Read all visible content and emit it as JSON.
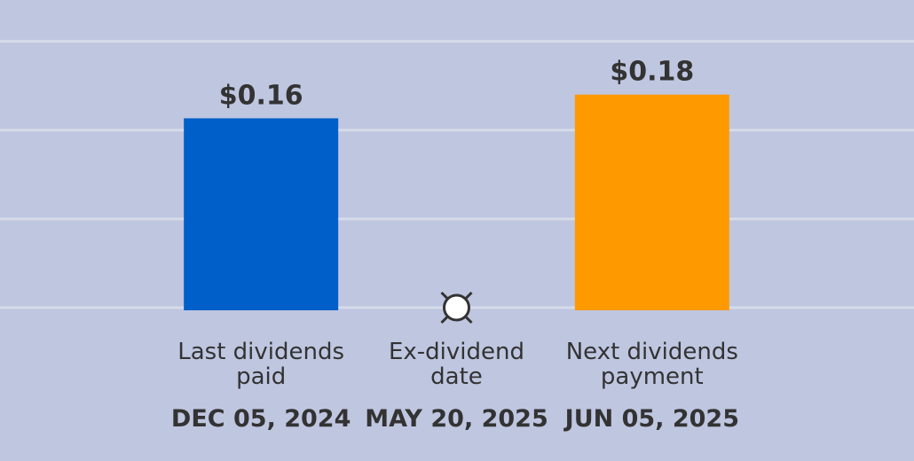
{
  "chart_data": {
    "type": "bar",
    "categories": [
      "Last dividends paid",
      "Ex-dividend date",
      "Next dividends payment"
    ],
    "dates": [
      "DEC 05, 2024",
      "MAY 20, 2025",
      "JUN 05, 2025"
    ],
    "values": [
      0.16,
      null,
      0.18
    ],
    "value_labels": [
      "$0.16",
      null,
      "$0.18"
    ],
    "colors": [
      "#005fc8",
      null,
      "#ff9900"
    ],
    "ylim": [
      0,
      0.23
    ],
    "yticks": [
      0,
      0.075,
      0.15,
      0.225
    ],
    "grid": true
  }
}
